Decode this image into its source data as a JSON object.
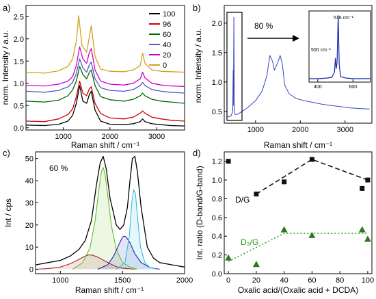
{
  "figure": {
    "panels": [
      {
        "id": "a",
        "panel_label": "a)",
        "chart_data": {
          "type": "line",
          "xlabel": "Raman shift / cm⁻¹",
          "ylabel": "norm. Intensity / a.u.",
          "xlim": [
            200,
            3600
          ],
          "ylim": [
            -0.05,
            2.75
          ],
          "x_ticks": [
            1000,
            2000,
            3000
          ],
          "y_ticks": [
            0.0,
            0.5,
            1.0,
            1.5,
            2.0,
            2.5
          ],
          "legend_position": "top-right",
          "series": [
            {
              "name": "100",
              "color": "#000000",
              "x": [
                200,
                600,
                900,
                1100,
                1200,
                1280,
                1350,
                1420,
                1500,
                1560,
                1600,
                1680,
                1800,
                2000,
                2300,
                2500,
                2650,
                2700,
                2750,
                2900,
                3100,
                3300,
                3600
              ],
              "y": [
                0.06,
                0.05,
                0.08,
                0.15,
                0.28,
                0.55,
                0.95,
                0.6,
                0.55,
                0.75,
                0.82,
                0.4,
                0.15,
                0.08,
                0.07,
                0.09,
                0.14,
                0.2,
                0.14,
                0.09,
                0.07,
                0.05,
                0.04
              ]
            },
            {
              "name": "96",
              "color": "#cc0000",
              "x": [
                200,
                600,
                900,
                1100,
                1200,
                1280,
                1350,
                1420,
                1500,
                1560,
                1600,
                1680,
                1800,
                2000,
                2300,
                2500,
                2650,
                2700,
                2750,
                2900,
                3100,
                3300,
                3600
              ],
              "y": [
                0.15,
                0.14,
                0.2,
                0.3,
                0.42,
                0.7,
                1.05,
                0.78,
                0.72,
                0.88,
                0.92,
                0.55,
                0.32,
                0.22,
                0.2,
                0.24,
                0.33,
                0.38,
                0.33,
                0.24,
                0.2,
                0.17,
                0.15
              ]
            },
            {
              "name": "60",
              "color": "#006600",
              "x": [
                200,
                600,
                900,
                1100,
                1200,
                1280,
                1350,
                1420,
                1500,
                1560,
                1600,
                1680,
                1800,
                2000,
                2300,
                2500,
                2650,
                2700,
                2750,
                2900,
                3100,
                3300,
                3600
              ],
              "y": [
                0.6,
                0.58,
                0.62,
                0.72,
                0.85,
                1.05,
                1.38,
                1.2,
                1.1,
                1.25,
                1.3,
                0.95,
                0.7,
                0.63,
                0.6,
                0.64,
                0.72,
                0.78,
                0.72,
                0.64,
                0.6,
                0.58,
                0.55
              ]
            },
            {
              "name": "40",
              "color": "#5555cc",
              "x": [
                200,
                600,
                900,
                1100,
                1200,
                1280,
                1350,
                1420,
                1500,
                1560,
                1600,
                1680,
                1800,
                2000,
                2300,
                2500,
                2650,
                2700,
                2750,
                2900,
                3100,
                3300,
                3600
              ],
              "y": [
                0.82,
                0.8,
                0.84,
                0.92,
                1.02,
                1.22,
                1.55,
                1.35,
                1.25,
                1.42,
                1.48,
                1.1,
                0.9,
                0.84,
                0.82,
                0.86,
                0.95,
                1.02,
                0.95,
                0.86,
                0.82,
                0.8,
                0.78
              ]
            },
            {
              "name": "20",
              "color": "#cc00cc",
              "x": [
                200,
                600,
                900,
                1100,
                1200,
                1280,
                1350,
                1420,
                1500,
                1560,
                1600,
                1680,
                1800,
                2000,
                2300,
                2500,
                2650,
                2700,
                2750,
                2900,
                3100,
                3300,
                3600
              ],
              "y": [
                0.95,
                0.94,
                0.98,
                1.05,
                1.15,
                1.4,
                1.82,
                1.55,
                1.45,
                1.7,
                1.78,
                1.3,
                1.05,
                0.98,
                0.96,
                1.0,
                1.1,
                1.25,
                1.12,
                1.0,
                0.96,
                0.94,
                0.93
              ]
            },
            {
              "name": "0",
              "color": "#d4a020",
              "x": [
                200,
                600,
                900,
                1100,
                1200,
                1280,
                1330,
                1400,
                1500,
                1560,
                1600,
                1680,
                1800,
                2000,
                2300,
                2500,
                2650,
                2700,
                2750,
                2900,
                3100,
                3300,
                3600
              ],
              "y": [
                1.25,
                1.23,
                1.28,
                1.38,
                1.55,
                1.95,
                2.52,
                1.85,
                1.7,
                2.05,
                2.3,
                1.6,
                1.32,
                1.27,
                1.26,
                1.3,
                1.4,
                1.68,
                1.45,
                1.3,
                1.27,
                1.26,
                1.25
              ]
            }
          ]
        }
      },
      {
        "id": "b",
        "panel_label": "b)",
        "chart_data": {
          "type": "line",
          "xlabel": "Raman shift / cm⁻¹",
          "ylabel": "norm. Intensity / a.u.",
          "xlim": [
            300,
            3600
          ],
          "ylim": [
            0.3,
            2.3
          ],
          "x_ticks": [
            1000,
            2000,
            3000
          ],
          "y_ticks": [
            0.5,
            1.0,
            1.5,
            2.0
          ],
          "annotation": "80 %",
          "series": [
            {
              "name": "",
              "color": "#3344bb",
              "x": [
                350,
                450,
                490,
                500,
                505,
                516,
                525,
                540,
                600,
                800,
                1000,
                1150,
                1250,
                1320,
                1380,
                1420,
                1480,
                1550,
                1600,
                1650,
                1750,
                1900,
                2100,
                2300,
                2500,
                2700,
                2900,
                3100,
                3300,
                3550
              ],
              "y": [
                0.4,
                0.42,
                0.5,
                1.2,
                0.6,
                2.1,
                0.55,
                0.45,
                0.45,
                0.55,
                0.68,
                0.85,
                1.1,
                1.45,
                1.35,
                1.2,
                1.3,
                1.45,
                1.3,
                0.95,
                0.8,
                0.72,
                0.68,
                0.65,
                0.62,
                0.6,
                0.58,
                0.56,
                0.55,
                0.54
              ]
            }
          ],
          "inset": {
            "xlim": [
              350,
              700
            ],
            "x_ticks": [
              400,
              600
            ],
            "annotations": [
              "516 cm⁻¹",
              "500 cm⁻¹"
            ],
            "series": [
              {
                "name": "",
                "color": "#1122aa",
                "x": [
                  350,
                  400,
                  450,
                  480,
                  495,
                  500,
                  505,
                  510,
                  516,
                  522,
                  530,
                  560,
                  600,
                  650,
                  700
                ],
                "y": [
                  0.05,
                  0.05,
                  0.06,
                  0.07,
                  0.15,
                  0.35,
                  0.2,
                  0.3,
                  0.98,
                  0.25,
                  0.08,
                  0.06,
                  0.05,
                  0.05,
                  0.05
                ]
              }
            ]
          }
        }
      },
      {
        "id": "c",
        "panel_label": "c)",
        "chart_data": {
          "type": "line",
          "xlabel": "Raman shift / cm⁻¹",
          "ylabel": "Int / cps",
          "xlim": [
            800,
            2000
          ],
          "ylim": [
            -2,
            53
          ],
          "x_ticks": [
            1000,
            1500,
            2000
          ],
          "y_ticks": [
            0,
            10,
            20,
            30,
            40,
            50
          ],
          "annotation": "60 %",
          "series": [
            {
              "name": "",
              "color": "#000000",
              "x": [
                800,
                900,
                1000,
                1080,
                1150,
                1200,
                1250,
                1290,
                1320,
                1345,
                1370,
                1400,
                1450,
                1480,
                1510,
                1540,
                1560,
                1580,
                1600,
                1620,
                1650,
                1700,
                1750,
                1800,
                1900,
                2000
              ],
              "y": [
                2,
                3,
                4,
                6,
                9,
                13,
                22,
                38,
                48,
                51,
                45,
                32,
                20,
                18,
                20,
                28,
                40,
                50,
                51,
                44,
                28,
                10,
                5,
                3,
                2,
                1
              ]
            },
            {
              "name": "",
              "color": "#aa2222",
              "x": [
                800,
                900,
                1000,
                1080,
                1150,
                1200,
                1230,
                1260,
                1300,
                1350,
                1400,
                1450,
                1500,
                1600
              ],
              "y": [
                0,
                0.3,
                1,
                2.5,
                4.5,
                6,
                6.5,
                6.3,
                5.5,
                4,
                2.5,
                1.2,
                0.5,
                0
              ]
            },
            {
              "name": "",
              "color": "#66bb22",
              "x": [
                1100,
                1180,
                1240,
                1280,
                1310,
                1330,
                1345,
                1360,
                1380,
                1410,
                1450,
                1500,
                1560,
                1620
              ],
              "y": [
                0,
                3,
                10,
                22,
                36,
                44,
                46,
                43,
                34,
                20,
                9,
                3,
                1,
                0
              ]
            },
            {
              "name": "",
              "color": "#2222aa",
              "x": [
                1300,
                1380,
                1430,
                1470,
                1500,
                1515,
                1530,
                1560,
                1600,
                1650,
                1720,
                1800
              ],
              "y": [
                0,
                2,
                6,
                11,
                14.5,
                15,
                14.5,
                12,
                7,
                3,
                0.8,
                0
              ]
            },
            {
              "name": "",
              "color": "#33bbdd",
              "x": [
                1450,
                1520,
                1555,
                1575,
                1590,
                1605,
                1620,
                1645,
                1680,
                1720,
                1780
              ],
              "y": [
                0,
                3,
                15,
                30,
                36,
                34,
                24,
                10,
                3,
                0.8,
                0
              ]
            }
          ]
        }
      },
      {
        "id": "d",
        "panel_label": "d)",
        "chart_data": {
          "type": "scatter",
          "xlabel": "Oxalic acid/(Oxalic acid + DCDA)",
          "ylabel": "Int. ratio (D-band/G-band)",
          "xlim": [
            -3,
            103
          ],
          "ylim": [
            0,
            1.3
          ],
          "x_ticks": [
            0,
            20,
            40,
            60,
            80,
            100
          ],
          "y_ticks": [
            0.0,
            0.2,
            0.4,
            0.6,
            0.8,
            1.0,
            1.2
          ],
          "annotations": [
            "D/G",
            "D₃/G"
          ],
          "series": [
            {
              "name": "",
              "marker": "square",
              "color": "#111111",
              "x": [
                0,
                20,
                40,
                60,
                96,
                100
              ],
              "y": [
                1.2,
                0.85,
                0.98,
                1.22,
                0.91,
                1.0
              ],
              "fit_x": [
                20,
                60,
                100
              ],
              "fit_y": [
                0.85,
                1.22,
                1.0
              ],
              "fit_style": "dashed"
            },
            {
              "name": "",
              "marker": "triangle",
              "color": "#2a7a1a",
              "x": [
                0,
                20,
                40,
                60,
                96,
                100
              ],
              "y": [
                0.17,
                0.1,
                0.47,
                0.41,
                0.47,
                0.37
              ],
              "fit_x": [
                0,
                40,
                100
              ],
              "fit_y": [
                0.13,
                0.43,
                0.43
              ],
              "fit_style": "dotted",
              "fit_color": "#2aa52a"
            }
          ]
        }
      }
    ]
  }
}
